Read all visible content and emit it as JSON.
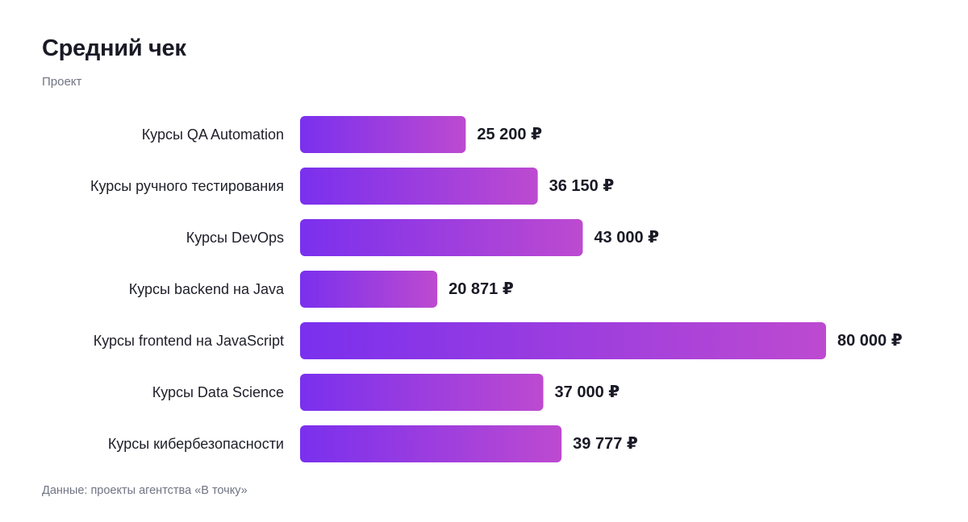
{
  "header": {
    "title": "Средний чек",
    "subtitle": "Проект"
  },
  "footer": {
    "source": "Данные: проекты агентства «В точку»"
  },
  "colors": {
    "bar_gradient_start": "#7a30ee",
    "bar_gradient_end": "#bd4ad0"
  },
  "chart_data": {
    "type": "bar",
    "orientation": "horizontal",
    "title": "Средний чек",
    "subtitle": "Проект",
    "categories": [
      "Курсы QA Automation",
      "Курсы ручного тестирования",
      "Курсы DevOps",
      "Курсы backend на Java",
      "Курсы frontend на JavaScript",
      "Курсы Data Science",
      "Курсы кибербезопасности"
    ],
    "values": [
      25200,
      36150,
      43000,
      20871,
      80000,
      37000,
      39777
    ],
    "value_labels": [
      "25 200 ₽",
      "36 150 ₽",
      "43 000 ₽",
      "20 871 ₽",
      "80 000 ₽",
      "37 000 ₽",
      "39 777 ₽"
    ],
    "unit": "₽",
    "xlim": [
      0,
      80000
    ],
    "grid": false,
    "legend": "none"
  }
}
